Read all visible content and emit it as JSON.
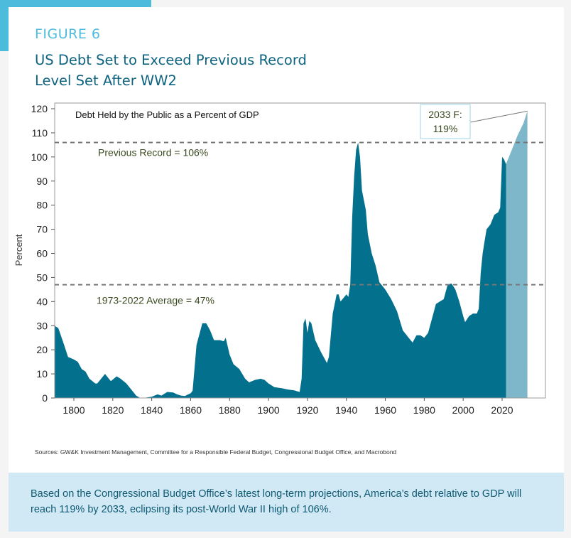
{
  "figure_label": "FIGURE 6",
  "title": "US Debt Set to Exceed Previous Record Level Set After WW2",
  "sources": "Sources: GW&K Investment Management, Committee for a Responsible Federal Budget, Congressional Budget Office, and Macrobond",
  "caption": "Based on the Congressional Budget Office’s latest long-term projections, America’s debt relative to GDP will reach 119% by 2033, eclipsing its post-World War II high of 106%.",
  "colors": {
    "accent": "#4dbcdc",
    "historical": "#03708d",
    "forecast": "#7db7c9",
    "caption_bg": "#d1e8f5"
  },
  "chart_data": {
    "type": "area",
    "title": "Debt Held by the Public as a Percent of GDP",
    "ylabel": "Percent",
    "xlabel": "",
    "xlim": [
      1790,
      2039
    ],
    "ylim": [
      0,
      120
    ],
    "xticks": [
      1800,
      1820,
      1840,
      1860,
      1880,
      1900,
      1920,
      1940,
      1960,
      1980,
      2000,
      2020
    ],
    "yticks": [
      0,
      10,
      20,
      30,
      40,
      50,
      60,
      70,
      80,
      90,
      100,
      110,
      120
    ],
    "grid": false,
    "series": [
      {
        "x": [
          1790,
          1792,
          1795,
          1797,
          1800,
          1802,
          1804,
          1806,
          1808,
          1811,
          1812,
          1815,
          1816,
          1818,
          1819,
          1822,
          1824,
          1827,
          1830,
          1832,
          1834,
          1836,
          1838,
          1840,
          1843,
          1845,
          1848,
          1851,
          1853,
          1855,
          1857,
          1860,
          1861,
          1863,
          1866,
          1868,
          1870,
          1872,
          1875,
          1877,
          1878,
          1880,
          1882,
          1885,
          1888,
          1890,
          1893,
          1896,
          1898,
          1900,
          1903,
          1907,
          1910,
          1913,
          1916,
          1917,
          1918,
          1919,
          1920,
          1921,
          1922,
          1924,
          1927,
          1929,
          1930,
          1931,
          1933,
          1935,
          1936,
          1937,
          1939,
          1940,
          1941,
          1942,
          1943,
          1944,
          1945,
          1946,
          1947,
          1948,
          1950,
          1951,
          1953,
          1955,
          1957,
          1960,
          1963,
          1966,
          1969,
          1970,
          1972,
          1974,
          1976,
          1978,
          1980,
          1982,
          1984,
          1986,
          1988,
          1990,
          1992,
          1994,
          1996,
          1998,
          2000,
          2001,
          2003,
          2005,
          2007,
          2008,
          2009,
          2010,
          2011,
          2012,
          2014,
          2016,
          2018,
          2019,
          2020,
          2021,
          2022
        ],
        "values": [
          30,
          29,
          22,
          17,
          16,
          15,
          12,
          11,
          8,
          6,
          6,
          9,
          10,
          8,
          7,
          9,
          8,
          6,
          3,
          1,
          0,
          0,
          0.3,
          0.5,
          1.5,
          1,
          2.5,
          2.3,
          1.5,
          1,
          0.8,
          2,
          3,
          22,
          31,
          31,
          28,
          24,
          24,
          23.5,
          25,
          18,
          14,
          12,
          8,
          6.5,
          7.5,
          8,
          7.5,
          6,
          4.5,
          4,
          3.5,
          3.2,
          2.5,
          8,
          31,
          33,
          27,
          32,
          31,
          24,
          19,
          16,
          14.5,
          17,
          35,
          43,
          43,
          40,
          42,
          43,
          42,
          47,
          75,
          92,
          103,
          106,
          100,
          86,
          78,
          68,
          60,
          55,
          48,
          45,
          41,
          36,
          28,
          27,
          25,
          23,
          26,
          26,
          25,
          27,
          33,
          39,
          40,
          41,
          47,
          47.5,
          45,
          40,
          34,
          31.5,
          34,
          35,
          35,
          37,
          52,
          60,
          65,
          70,
          72,
          76,
          77,
          79,
          100,
          99,
          97
        ]
      },
      {
        "x": [
          2022,
          2025,
          2028,
          2031,
          2033
        ],
        "values": [
          97,
          103,
          109,
          114,
          119
        ]
      }
    ],
    "reference_lines": [
      {
        "y": 106,
        "label": "Previous Record = 106%"
      },
      {
        "y": 47,
        "label": "1973-2022 Average = 47%"
      }
    ],
    "annotation": {
      "x": 2033,
      "y": 119,
      "line1": "2033 F:",
      "line2": "119%"
    }
  }
}
